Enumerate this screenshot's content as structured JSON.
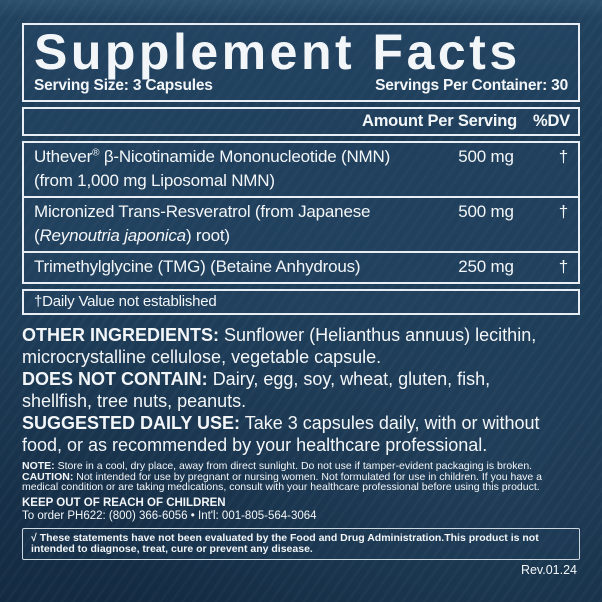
{
  "header": {
    "title": "Supplement Facts",
    "serving_size": "Serving Size: 3 Capsules",
    "servings_per_container": "Servings Per Container: 30"
  },
  "columns": {
    "amount": "Amount Per Serving",
    "dv": "%DV"
  },
  "rows": [
    {
      "brand": "Uthever",
      "trademark": "®",
      "name_rest": " β-Nicotinamide Mononucleotide (NMN)",
      "name_line2": "(from 1,000 mg Liposomal NMN)",
      "amount": "500 mg",
      "dv": "†"
    },
    {
      "name_line1": "Micronized Trans-Resveratrol (from Japanese",
      "line2_pre": "(",
      "line2_italic": "Reynoutria japonica",
      "line2_post": ") root)",
      "amount": "500 mg",
      "dv": "†"
    },
    {
      "name": "Trimethylglycine (TMG) (Betaine Anhydrous)",
      "amount": "250 mg",
      "dv": "†"
    }
  ],
  "footnote": "†Daily Value not established",
  "sections": [
    {
      "label": "OTHER INGREDIENTS:",
      "text": "Sunflower (Helianthus annuus) lecithin, microcrystalline cellulose, vegetable capsule."
    },
    {
      "label": "DOES NOT CONTAIN:",
      "text": "Dairy, egg, soy, wheat, gluten, fish, shellfish, tree nuts, peanuts."
    },
    {
      "label": "SUGGESTED DAILY USE:",
      "text": "Take 3 capsules daily, with or without food, or as recommended by your healthcare professional."
    }
  ],
  "fine_print": {
    "note_label": "NOTE:",
    "note_text": "Store in a cool, dry place, away from direct sunlight. Do not use if tamper-evident packaging is broken.",
    "caution_label": "CAUTION:",
    "caution_text": "Not intended for use by pregnant or nursing women. Not formulated for use in children. If you have a medical condition or are taking medications, consult with your healthcare professional before using this product.",
    "keep_out": "KEEP OUT OF REACH OF CHILDREN",
    "order_info": "To order PH622: (800) 366-6056 • Int'l: 001-805-564-3064"
  },
  "disclaimer": {
    "check_mark": "√",
    "text": "These statements have not been evaluated by the Food and Drug Administration.This product is not intended to diagnose, treat, cure or prevent any disease."
  },
  "revision": "Rev.01.24",
  "colors": {
    "background_navy": "#1a3751",
    "border_white": "#e8eef3",
    "text_white": "#f3f6f8"
  }
}
